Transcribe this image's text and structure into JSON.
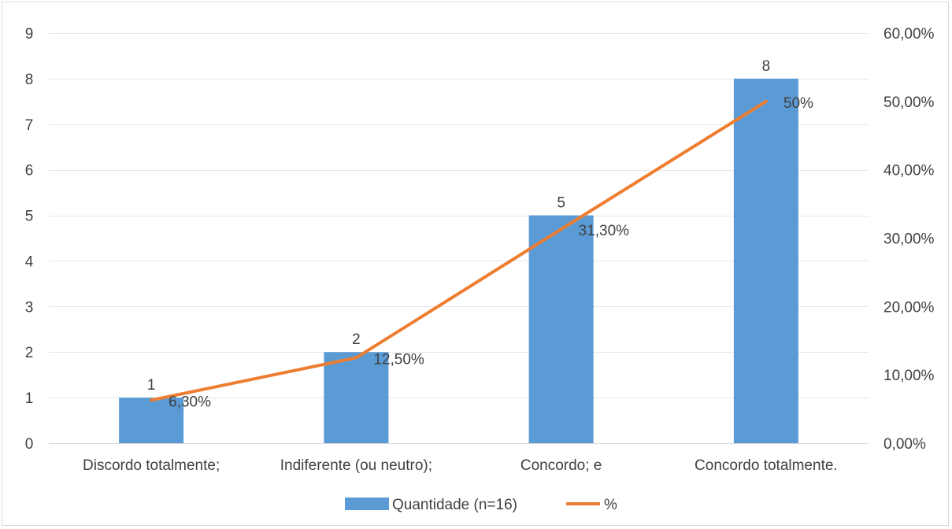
{
  "chart_data": {
    "type": "bar",
    "categories": [
      "Discordo totalmente;",
      "Indiferente (ou neutro);",
      "Concordo; e",
      "Concordo totalmente."
    ],
    "series": [
      {
        "name": "Quantidade (n=16)",
        "type": "bar",
        "axis": "left",
        "values": [
          1,
          2,
          5,
          8
        ],
        "labels": [
          "1",
          "2",
          "5",
          "8"
        ],
        "color": "#5b9bd5"
      },
      {
        "name": "%",
        "type": "line",
        "axis": "right",
        "values": [
          6.3,
          12.5,
          31.3,
          50
        ],
        "labels": [
          "6,30%",
          "12,50%",
          "31,30%",
          "50%"
        ],
        "color": "#ed7d31"
      }
    ],
    "left_axis": {
      "min": 0,
      "max": 9,
      "step": 1,
      "ticks": [
        "0",
        "1",
        "2",
        "3",
        "4",
        "5",
        "6",
        "7",
        "8",
        "9"
      ]
    },
    "right_axis": {
      "min": 0,
      "max": 60,
      "step": 10,
      "ticks": [
        "0,00%",
        "10,00%",
        "20,00%",
        "30,00%",
        "40,00%",
        "50,00%",
        "60,00%"
      ]
    },
    "grid": true,
    "legend_position": "bottom"
  }
}
